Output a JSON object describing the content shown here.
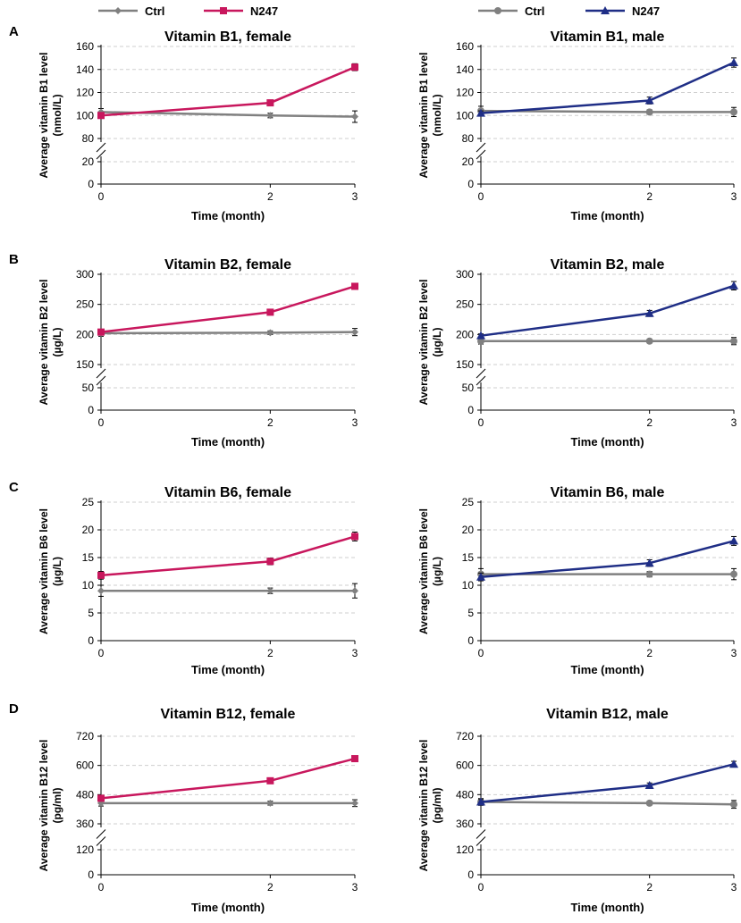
{
  "legends": [
    {
      "items": [
        {
          "label": "Ctrl",
          "color": "#808080",
          "marker": "diamond"
        },
        {
          "label": "N247",
          "color": "#c8175d",
          "marker": "square"
        }
      ]
    },
    {
      "items": [
        {
          "label": "Ctrl",
          "color": "#808080",
          "marker": "circle"
        },
        {
          "label": "N247",
          "color": "#1f2e86",
          "marker": "triangle"
        }
      ]
    }
  ],
  "chart_data": [
    {
      "type": "line",
      "panel": "A",
      "title": "Vitamin B1, female",
      "ylabel_line1": "Average vitamin B1 level",
      "ylabel_line2": "(nmol/L)",
      "xlabel": "Time (month)",
      "x": [
        0,
        2,
        3
      ],
      "ylim": [
        0,
        160
      ],
      "lower_ticks": [
        0,
        20
      ],
      "upper_ticks": [
        80,
        100,
        120,
        140,
        160
      ],
      "break": [
        20,
        80
      ],
      "series": [
        {
          "name": "Ctrl",
          "color": "#808080",
          "marker": "diamond",
          "values": [
            103,
            100,
            99
          ],
          "errors": [
            3,
            2,
            5
          ]
        },
        {
          "name": "N247",
          "color": "#c8175d",
          "marker": "square",
          "values": [
            100,
            111,
            142
          ],
          "errors": [
            2,
            2,
            3
          ]
        }
      ]
    },
    {
      "type": "line",
      "panel": "",
      "title": "Vitamin B1, male",
      "ylabel_line1": "Average vitamin B1 level",
      "ylabel_line2": "(nmol/L)",
      "xlabel": "Time (month)",
      "x": [
        0,
        2,
        3
      ],
      "ylim": [
        0,
        160
      ],
      "lower_ticks": [
        0,
        20
      ],
      "upper_ticks": [
        80,
        100,
        120,
        140,
        160
      ],
      "break": [
        20,
        80
      ],
      "series": [
        {
          "name": "Ctrl",
          "color": "#808080",
          "marker": "circle",
          "values": [
            104,
            103,
            103
          ],
          "errors": [
            4,
            2,
            4
          ]
        },
        {
          "name": "N247",
          "color": "#1f2e86",
          "marker": "triangle",
          "values": [
            102,
            113,
            146
          ],
          "errors": [
            2,
            3,
            4
          ]
        }
      ]
    },
    {
      "type": "line",
      "panel": "B",
      "title": "Vitamin B2, female",
      "ylabel_line1": "Average vitamin B2 level",
      "ylabel_line2": "(µg/L)",
      "xlabel": "Time (month)",
      "x": [
        0,
        2,
        3
      ],
      "ylim": [
        0,
        300
      ],
      "lower_ticks": [
        0,
        50
      ],
      "upper_ticks": [
        150,
        200,
        250,
        300
      ],
      "break": [
        50,
        150
      ],
      "series": [
        {
          "name": "Ctrl",
          "color": "#808080",
          "marker": "diamond",
          "values": [
            202,
            203,
            204
          ],
          "errors": [
            5,
            3,
            6
          ]
        },
        {
          "name": "N247",
          "color": "#c8175d",
          "marker": "square",
          "values": [
            204,
            237,
            280
          ],
          "errors": [
            3,
            3,
            4
          ]
        }
      ]
    },
    {
      "type": "line",
      "panel": "",
      "title": "Vitamin B2, male",
      "ylabel_line1": "Average vitamin B2 level",
      "ylabel_line2": "(µg/L)",
      "xlabel": "Time (month)",
      "x": [
        0,
        2,
        3
      ],
      "ylim": [
        0,
        300
      ],
      "lower_ticks": [
        0,
        50
      ],
      "upper_ticks": [
        150,
        200,
        250,
        300
      ],
      "break": [
        50,
        150
      ],
      "series": [
        {
          "name": "Ctrl",
          "color": "#808080",
          "marker": "circle",
          "values": [
            189,
            189,
            189
          ],
          "errors": [
            5,
            3,
            6
          ]
        },
        {
          "name": "N247",
          "color": "#1f2e86",
          "marker": "triangle",
          "values": [
            198,
            235,
            281
          ],
          "errors": [
            3,
            5,
            7
          ]
        }
      ]
    },
    {
      "type": "line",
      "panel": "C",
      "title": "Vitamin B6, female",
      "ylabel_line1": "Average vitamin B6 level",
      "ylabel_line2": "(µg/L)",
      "xlabel": "Time (month)",
      "x": [
        0,
        2,
        3
      ],
      "ylim": [
        0,
        25
      ],
      "ticks": [
        0,
        5,
        10,
        15,
        20,
        25
      ],
      "series": [
        {
          "name": "Ctrl",
          "color": "#808080",
          "marker": "diamond",
          "values": [
            9,
            9,
            9
          ],
          "errors": [
            1,
            0.5,
            1.3
          ]
        },
        {
          "name": "N247",
          "color": "#c8175d",
          "marker": "square",
          "values": [
            11.8,
            14.3,
            18.8
          ],
          "errors": [
            0.7,
            0.6,
            0.8
          ]
        }
      ]
    },
    {
      "type": "line",
      "panel": "",
      "title": "Vitamin B6, male",
      "ylabel_line1": "Average vitamin B6 level",
      "ylabel_line2": "(µg/L)",
      "xlabel": "Time (month)",
      "x": [
        0,
        2,
        3
      ],
      "ylim": [
        0,
        25
      ],
      "ticks": [
        0,
        5,
        10,
        15,
        20,
        25
      ],
      "series": [
        {
          "name": "Ctrl",
          "color": "#808080",
          "marker": "circle",
          "values": [
            12,
            12,
            12
          ],
          "errors": [
            1,
            0.5,
            1
          ]
        },
        {
          "name": "N247",
          "color": "#1f2e86",
          "marker": "triangle",
          "values": [
            11.5,
            14,
            18
          ],
          "errors": [
            0.7,
            0.6,
            0.8
          ]
        }
      ]
    },
    {
      "type": "line",
      "panel": "D",
      "title": "Vitamin B12, female",
      "ylabel_line1": "Average vitamin B12 level",
      "ylabel_line2": "(pg/ml)",
      "xlabel": "Time (month)",
      "x": [
        0,
        2,
        3
      ],
      "ylim": [
        0,
        720
      ],
      "lower_ticks": [
        0,
        120
      ],
      "upper_ticks": [
        360,
        480,
        600,
        720
      ],
      "break": [
        120,
        360
      ],
      "series": [
        {
          "name": "Ctrl",
          "color": "#808080",
          "marker": "diamond",
          "values": [
            445,
            445,
            445
          ],
          "errors": [
            12,
            8,
            14
          ]
        },
        {
          "name": "N247",
          "color": "#c8175d",
          "marker": "square",
          "values": [
            465,
            537,
            628
          ],
          "errors": [
            10,
            8,
            10
          ]
        }
      ]
    },
    {
      "type": "line",
      "panel": "",
      "title": "Vitamin B12, male",
      "ylabel_line1": "Average vitamin B12 level",
      "ylabel_line2": "(pg/ml)",
      "xlabel": "Time (month)",
      "x": [
        0,
        2,
        3
      ],
      "ylim": [
        0,
        720
      ],
      "lower_ticks": [
        0,
        120
      ],
      "upper_ticks": [
        360,
        480,
        600,
        720
      ],
      "break": [
        120,
        360
      ],
      "series": [
        {
          "name": "Ctrl",
          "color": "#808080",
          "marker": "circle",
          "values": [
            450,
            445,
            440
          ],
          "errors": [
            14,
            8,
            16
          ]
        },
        {
          "name": "N247",
          "color": "#1f2e86",
          "marker": "triangle",
          "values": [
            450,
            518,
            605
          ],
          "errors": [
            10,
            10,
            12
          ]
        }
      ]
    }
  ]
}
